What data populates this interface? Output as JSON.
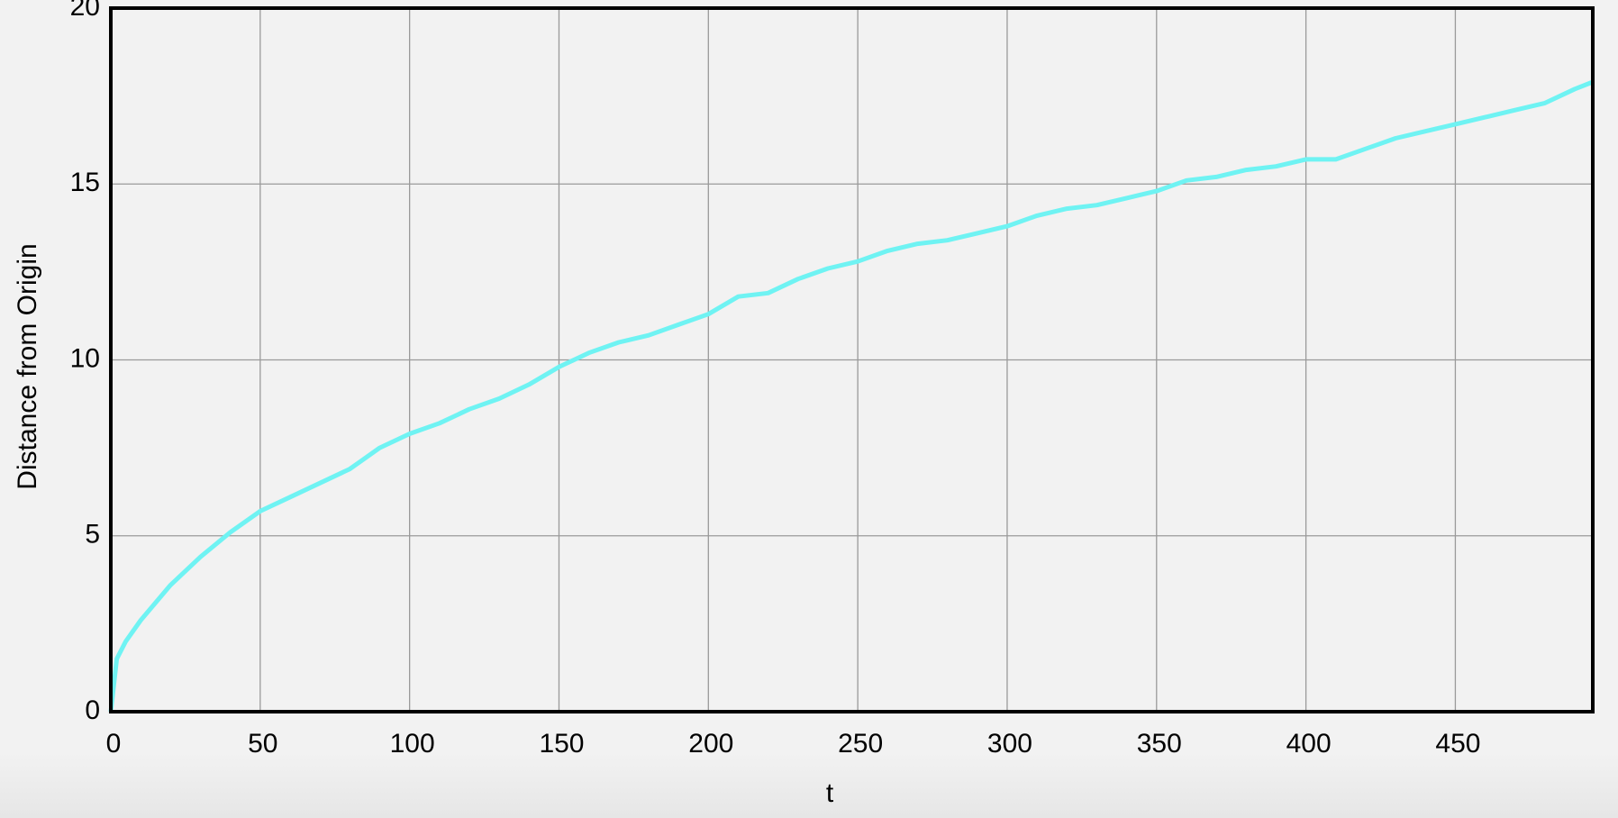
{
  "chart_data": {
    "type": "line",
    "x_label": "t",
    "y_label": "Distance from Origin",
    "x": [
      0,
      2,
      5,
      10,
      20,
      30,
      40,
      50,
      60,
      70,
      80,
      90,
      100,
      110,
      120,
      130,
      140,
      150,
      160,
      170,
      180,
      190,
      200,
      210,
      220,
      230,
      240,
      250,
      260,
      270,
      280,
      290,
      300,
      310,
      320,
      330,
      340,
      350,
      360,
      370,
      380,
      390,
      400,
      410,
      420,
      430,
      440,
      450,
      460,
      470,
      480,
      490,
      496
    ],
    "series": [
      {
        "color": "#6ff3f3",
        "values": [
          0,
          1.5,
          2.0,
          2.6,
          3.6,
          4.4,
          5.1,
          5.7,
          6.1,
          6.5,
          6.9,
          7.5,
          7.9,
          8.2,
          8.6,
          8.9,
          9.3,
          9.8,
          10.2,
          10.5,
          10.7,
          11.0,
          11.3,
          11.8,
          11.9,
          12.3,
          12.6,
          12.8,
          13.1,
          13.3,
          13.4,
          13.6,
          13.8,
          14.1,
          14.3,
          14.4,
          14.6,
          14.8,
          15.1,
          15.2,
          15.4,
          15.5,
          15.7,
          15.7,
          16.0,
          16.3,
          16.5,
          16.7,
          16.9,
          17.1,
          17.3,
          17.7,
          17.9
        ]
      }
    ],
    "xlim": [
      0,
      496
    ],
    "ylim": [
      0,
      20
    ],
    "xticks": [
      0,
      50,
      100,
      150,
      200,
      250,
      300,
      350,
      400,
      450
    ],
    "yticks": [
      0,
      5,
      10,
      15,
      20
    ],
    "grid": true
  }
}
